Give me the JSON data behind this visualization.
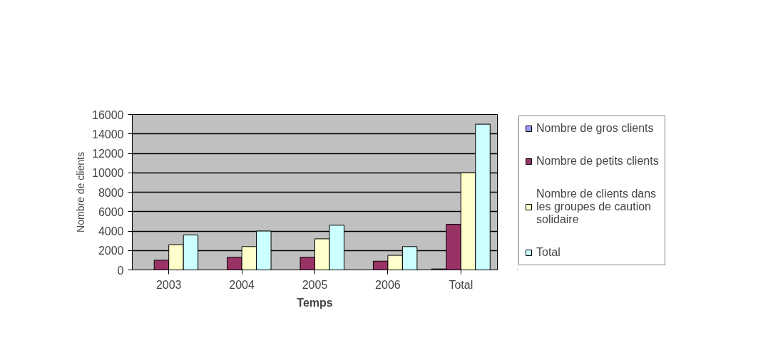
{
  "chart_data": {
    "type": "bar",
    "xlabel": "Temps",
    "ylabel": "Nombre de clients",
    "categories": [
      "2003",
      "2004",
      "2005",
      "2006",
      "Total"
    ],
    "series": [
      {
        "name": "Nombre de gros clients",
        "color": "#9999ff",
        "values": [
          null,
          null,
          null,
          null,
          100
        ]
      },
      {
        "name": "Nombre de petits clients",
        "color": "#993366",
        "values": [
          1000,
          1300,
          1300,
          900,
          4700
        ]
      },
      {
        "name": "Nombre de clients dans les groupes de caution solidaire",
        "color": "#ffffcc",
        "values": [
          2600,
          2400,
          3200,
          1500,
          10000
        ]
      },
      {
        "name": "Total",
        "color": "#ccffff",
        "values": [
          3600,
          4000,
          4600,
          2400,
          15000
        ]
      }
    ],
    "ylim": [
      0,
      16000
    ],
    "yticks": [
      0,
      2000,
      4000,
      6000,
      8000,
      10000,
      12000,
      14000,
      16000
    ],
    "grid": "y",
    "legend": "right"
  }
}
